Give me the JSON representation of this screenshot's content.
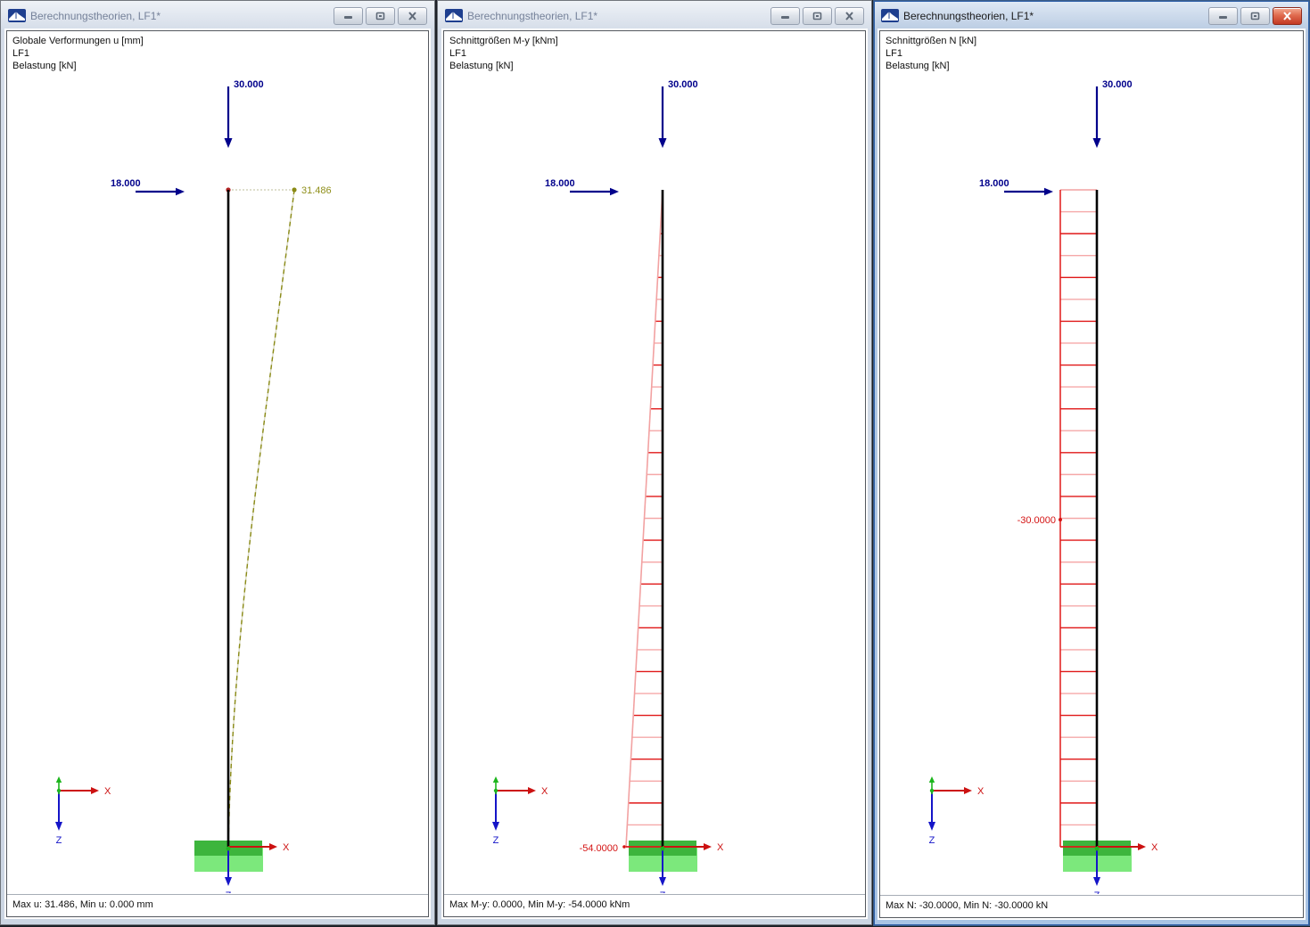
{
  "app_name": "Berechnungstheorien",
  "axis_labels": {
    "x": "X",
    "z": "Z"
  },
  "colors": {
    "load": "#00008b",
    "column": "#000000",
    "deform_value": "#8f8f1a",
    "deform_dash": "#8a8a15",
    "deform_under": "#d9d9c2",
    "dotted_ref": "#c9c9ad",
    "force_value": "#d41414",
    "diagram_bright": "#e01818",
    "diagram_light": "#f5a8a8",
    "diagram_boundary": "#f2a2a2",
    "support_dark": "#3db53d",
    "support_light": "#7ce87c",
    "axis_x": "#cc1111",
    "axis_z": "#1515c8",
    "axis_y_green": "#1db51d",
    "node_dot": "#b22222"
  },
  "windows": [
    {
      "title": "Berechnungstheorien, LF1*",
      "active": false,
      "header_lines": [
        "Globale Verformungen u [mm]",
        "LF1",
        "Belastung [kN]"
      ],
      "loads": {
        "vertical": "30.000",
        "horizontal": "18.000"
      },
      "diagram": {
        "type": "deformation",
        "value_label": "31.486",
        "max": 31.486,
        "min": 0.0,
        "unit": "mm"
      },
      "status": "Max u: 31.486, Min u: 0.000 mm"
    },
    {
      "title": "Berechnungstheorien, LF1*",
      "active": false,
      "header_lines": [
        "Schnittgrößen M-y [kNm]",
        "LF1",
        "Belastung [kN]"
      ],
      "loads": {
        "vertical": "30.000",
        "horizontal": "18.000"
      },
      "diagram": {
        "type": "moment",
        "value_label": "-54.0000",
        "max": 0.0,
        "min": -54.0,
        "unit": "kNm"
      },
      "status": "Max M-y: 0.0000, Min M-y: -54.0000 kNm"
    },
    {
      "title": "Berechnungstheorien, LF1*",
      "active": true,
      "header_lines": [
        "Schnittgrößen N [kN]",
        "LF1",
        "Belastung [kN]"
      ],
      "loads": {
        "vertical": "30.000",
        "horizontal": "18.000"
      },
      "diagram": {
        "type": "normal_force",
        "value_label": "-30.0000",
        "max": -30.0,
        "min": -30.0,
        "unit": "kN"
      },
      "status": "Max N: -30.0000, Min N: -30.0000 kN"
    }
  ]
}
